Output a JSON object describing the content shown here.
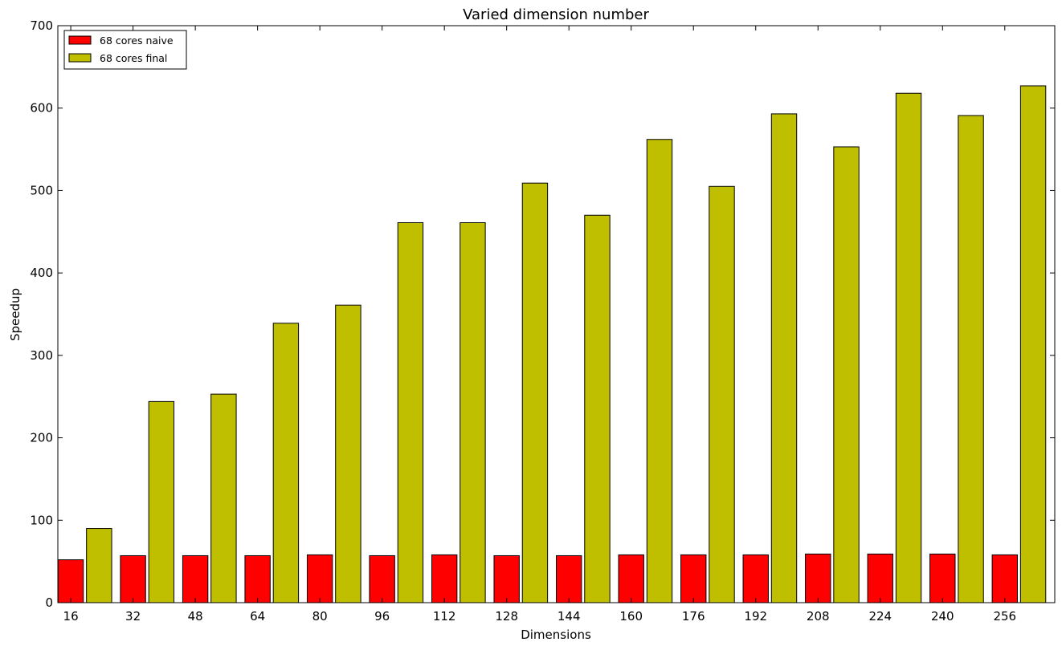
{
  "chart_data": {
    "type": "bar",
    "title": "Varied dimension number",
    "xlabel": "Dimensions",
    "ylabel": "Speedup",
    "ylim": [
      0,
      700
    ],
    "yticks": [
      0,
      100,
      200,
      300,
      400,
      500,
      600,
      700
    ],
    "categories": [
      "16",
      "32",
      "48",
      "64",
      "80",
      "96",
      "112",
      "128",
      "144",
      "160",
      "176",
      "192",
      "208",
      "224",
      "240",
      "256"
    ],
    "series": [
      {
        "name": "68 cores naive",
        "color": "#ff0000",
        "values": [
          52,
          57,
          57,
          57,
          58,
          57,
          58,
          57,
          57,
          58,
          58,
          58,
          59,
          59,
          59,
          58
        ]
      },
      {
        "name": "68 cores final",
        "color": "#bfbf00",
        "values": [
          90,
          244,
          253,
          339,
          361,
          461,
          461,
          509,
          470,
          562,
          505,
          593,
          553,
          618,
          591,
          627
        ]
      }
    ],
    "legend_position": "top-left",
    "grid": false
  }
}
